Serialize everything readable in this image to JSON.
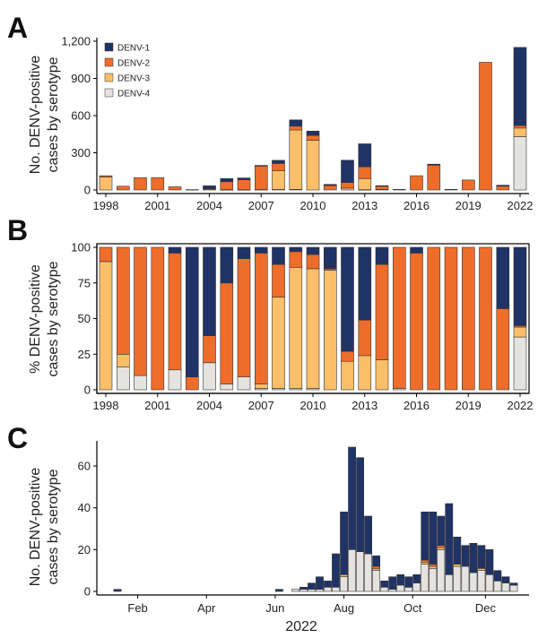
{
  "colors": {
    "DENV-1": "#1f3366",
    "DENV-2": "#ef6d2a",
    "DENV-3": "#fbbf6a",
    "DENV-4": "#e5e3e0"
  },
  "chart_data": [
    {
      "panel_label": "A",
      "type": "bar",
      "stacked": true,
      "ylabel": [
        "No. DENV-positive",
        "cases by serotype"
      ],
      "ylim": [
        0,
        1200
      ],
      "yticks": [
        0,
        300,
        600,
        900,
        1200
      ],
      "ytick_labels": [
        "0",
        "300",
        "600",
        "900",
        "1,200"
      ],
      "categories": [
        1998,
        1999,
        2000,
        2001,
        2002,
        2003,
        2004,
        2005,
        2006,
        2007,
        2008,
        2009,
        2010,
        2011,
        2012,
        2013,
        2014,
        2015,
        2016,
        2017,
        2018,
        2019,
        2020,
        2021,
        2022
      ],
      "xtick_labels": [
        "1998",
        "2001",
        "2004",
        "2007",
        "2010",
        "2013",
        "2016",
        "2019",
        "2022"
      ],
      "legend": [
        "DENV-1",
        "DENV-2",
        "DENV-3",
        "DENV-4"
      ],
      "series": [
        {
          "name": "DENV-4",
          "values": [
            0,
            0,
            0,
            0,
            0,
            0,
            0,
            2,
            2,
            0,
            4,
            5,
            0,
            0,
            0,
            2,
            0,
            0,
            0,
            0,
            0,
            0,
            0,
            0,
            430
          ]
        },
        {
          "name": "DENV-3",
          "values": [
            105,
            0,
            0,
            0,
            0,
            0,
            0,
            0,
            0,
            3,
            150,
            480,
            400,
            0,
            15,
            90,
            5,
            0,
            0,
            0,
            0,
            0,
            0,
            0,
            70
          ]
        },
        {
          "name": "DENV-2",
          "values": [
            10,
            30,
            100,
            100,
            25,
            3,
            8,
            65,
            80,
            190,
            60,
            30,
            40,
            35,
            45,
            95,
            25,
            5,
            115,
            200,
            0,
            80,
            1030,
            30,
            20
          ]
        },
        {
          "name": "DENV-1",
          "values": [
            0,
            0,
            0,
            0,
            0,
            0,
            25,
            25,
            15,
            5,
            25,
            50,
            35,
            10,
            180,
            185,
            5,
            0,
            0,
            8,
            5,
            0,
            0,
            8,
            630
          ]
        }
      ]
    },
    {
      "panel_label": "B",
      "type": "bar",
      "stacked": true,
      "ylabel": [
        "% DENV-positive",
        "cases by serotype"
      ],
      "ylim": [
        0,
        100
      ],
      "yticks": [
        0,
        25,
        50,
        75,
        100
      ],
      "ytick_labels": [
        "0",
        "25",
        "50",
        "75",
        "100"
      ],
      "categories": [
        1998,
        1999,
        2000,
        2001,
        2002,
        2003,
        2004,
        2005,
        2006,
        2007,
        2008,
        2009,
        2010,
        2011,
        2012,
        2013,
        2014,
        2015,
        2016,
        2017,
        2018,
        2019,
        2020,
        2021,
        2022
      ],
      "xtick_labels": [
        "1998",
        "2001",
        "2004",
        "2007",
        "2010",
        "2013",
        "2016",
        "2019",
        "2022"
      ],
      "series": [
        {
          "name": "DENV-4",
          "values": [
            0,
            16,
            10,
            0,
            14,
            0,
            19,
            4,
            9,
            1,
            1,
            1,
            1,
            0,
            0,
            0,
            0,
            1,
            0,
            0,
            0,
            0,
            0,
            0,
            37
          ]
        },
        {
          "name": "DENV-3",
          "values": [
            90,
            9,
            0,
            0,
            0,
            0,
            0,
            0,
            0,
            3,
            64,
            85,
            84,
            84,
            20,
            24,
            21,
            0,
            0,
            0,
            0,
            0,
            0,
            0,
            7
          ]
        },
        {
          "name": "DENV-2",
          "values": [
            10,
            75,
            90,
            100,
            82,
            9,
            19,
            71,
            83,
            92,
            23,
            11,
            10,
            1,
            7,
            25,
            67,
            99,
            96,
            100,
            100,
            100,
            100,
            57,
            1
          ]
        },
        {
          "name": "DENV-1",
          "values": [
            0,
            0,
            0,
            0,
            4,
            91,
            62,
            25,
            8,
            4,
            12,
            3,
            5,
            15,
            73,
            51,
            12,
            0,
            4,
            0,
            0,
            0,
            0,
            43,
            55
          ]
        }
      ]
    },
    {
      "panel_label": "C",
      "type": "bar",
      "stacked": true,
      "ylabel": [
        "No. DENV-positive",
        "cases by serotype"
      ],
      "xlabel": "2022",
      "ylim": [
        0,
        72
      ],
      "yticks": [
        0,
        20,
        40,
        60
      ],
      "ytick_labels": [
        "0",
        "20",
        "40",
        "60"
      ],
      "xtick_labels": [
        "Feb",
        "Apr",
        "Jun",
        "Aug",
        "Oct",
        "Dec"
      ],
      "xtick_weeks": [
        5.5,
        14,
        22.5,
        31,
        39.5,
        48.5
      ],
      "weeks": [
        3,
        23,
        25,
        26,
        27,
        28,
        29,
        30,
        31,
        32,
        33,
        34,
        35,
        36,
        37,
        38,
        39,
        40,
        41,
        42,
        43,
        44,
        45,
        46,
        47,
        48,
        49,
        50,
        51,
        52
      ],
      "series": [
        {
          "name": "DENV-4",
          "values": [
            0,
            0,
            1,
            1,
            1,
            1,
            2,
            2,
            7,
            20,
            19,
            18,
            10,
            2,
            1,
            3,
            2,
            4,
            13,
            11,
            20,
            8,
            12,
            12,
            9,
            10,
            8,
            5,
            4,
            3
          ]
        },
        {
          "name": "DENV-3",
          "values": [
            0,
            0,
            0,
            0,
            0,
            0,
            0,
            0,
            1,
            0,
            0,
            0,
            1,
            0,
            0,
            0,
            0,
            0,
            1,
            1,
            1,
            0,
            1,
            0,
            0,
            1,
            0,
            0,
            0,
            0
          ]
        },
        {
          "name": "DENV-2",
          "values": [
            0,
            0,
            0,
            0,
            0,
            0,
            0,
            0,
            0,
            0,
            0,
            0,
            1,
            0,
            0,
            0,
            0,
            0,
            1,
            1,
            1,
            0,
            0,
            0,
            0,
            0,
            0,
            0,
            0,
            0
          ]
        },
        {
          "name": "DENV-1",
          "values": [
            1,
            1,
            0,
            1,
            3,
            6,
            3,
            16,
            30,
            49,
            45,
            18,
            5,
            3,
            6,
            5,
            5,
            4,
            23,
            25,
            14,
            34,
            13,
            10,
            14,
            11,
            12,
            5,
            3,
            1
          ]
        }
      ]
    }
  ]
}
